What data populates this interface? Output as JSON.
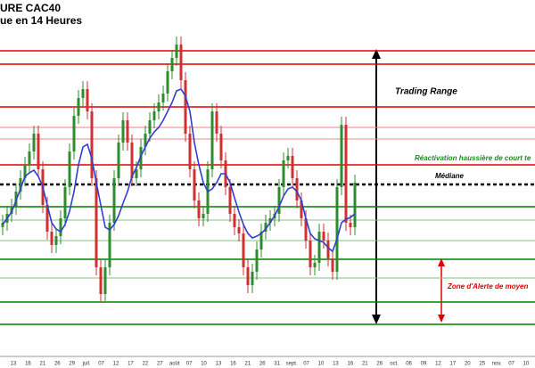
{
  "chart_data": {
    "type": "candlestick",
    "title": "URE CAC40",
    "subtitle": "ue en 14 Heures",
    "ylim": [
      0,
      413
    ],
    "up_color": "#2e8b2e",
    "down_color": "#d03030",
    "open": [
      158,
      163,
      173,
      181,
      198,
      213,
      228,
      243,
      263,
      223,
      183,
      153,
      138,
      148,
      168,
      203,
      243,
      283,
      303,
      313,
      288,
      213,
      113,
      83,
      113,
      163,
      213,
      253,
      278,
      253,
      213,
      223,
      248,
      263,
      278,
      288,
      298,
      308,
      333,
      348,
      363,
      323,
      263,
      223,
      188,
      168,
      173,
      223,
      288,
      263,
      233,
      203,
      173,
      158,
      151,
      113,
      93,
      108,
      133,
      153,
      163,
      168,
      173,
      203,
      233,
      238,
      213,
      188,
      168,
      143,
      113,
      118,
      153,
      143,
      123,
      108,
      203,
      273,
      163,
      158
    ],
    "high": [
      172,
      182,
      190,
      207,
      222,
      237,
      252,
      272,
      272,
      232,
      192,
      162,
      157,
      177,
      212,
      252,
      292,
      312,
      322,
      322,
      297,
      222,
      122,
      122,
      172,
      222,
      262,
      287,
      287,
      262,
      232,
      257,
      272,
      287,
      297,
      307,
      317,
      342,
      357,
      372,
      372,
      332,
      272,
      232,
      197,
      182,
      232,
      297,
      297,
      272,
      242,
      212,
      182,
      167,
      160,
      122,
      117,
      142,
      162,
      172,
      177,
      182,
      212,
      242,
      247,
      247,
      222,
      197,
      177,
      152,
      127,
      162,
      162,
      152,
      132,
      212,
      282,
      282,
      172,
      217
    ],
    "low": [
      149,
      154,
      164,
      172,
      189,
      204,
      219,
      234,
      214,
      174,
      144,
      129,
      129,
      139,
      159,
      194,
      234,
      274,
      294,
      279,
      204,
      104,
      74,
      74,
      104,
      154,
      204,
      244,
      244,
      204,
      204,
      214,
      239,
      254,
      269,
      279,
      289,
      299,
      324,
      339,
      314,
      254,
      214,
      179,
      159,
      159,
      164,
      214,
      254,
      224,
      194,
      164,
      149,
      142,
      104,
      84,
      84,
      99,
      124,
      144,
      154,
      159,
      164,
      194,
      224,
      204,
      179,
      159,
      134,
      104,
      104,
      109,
      134,
      114,
      99,
      99,
      194,
      154,
      149,
      149
    ],
    "close": [
      163,
      173,
      181,
      198,
      213,
      228,
      243,
      263,
      223,
      183,
      153,
      138,
      148,
      168,
      203,
      243,
      283,
      303,
      313,
      288,
      213,
      113,
      83,
      113,
      163,
      213,
      253,
      278,
      253,
      213,
      223,
      248,
      263,
      278,
      288,
      298,
      308,
      333,
      348,
      363,
      323,
      263,
      223,
      188,
      168,
      173,
      223,
      288,
      263,
      233,
      203,
      173,
      158,
      151,
      113,
      93,
      108,
      133,
      153,
      163,
      168,
      173,
      203,
      233,
      238,
      213,
      188,
      168,
      143,
      113,
      118,
      153,
      143,
      123,
      108,
      203,
      273,
      163,
      158,
      208
    ],
    "moving_average": {
      "color": "#2f3fd0",
      "values": [
        161,
        168,
        175,
        188,
        201,
        215,
        219,
        222,
        215,
        203,
        183,
        163,
        156,
        153,
        161,
        176,
        198,
        228,
        248,
        251,
        235,
        208,
        183,
        158,
        155,
        161,
        171,
        185,
        198,
        215,
        225,
        238,
        248,
        258,
        265,
        270,
        278,
        288,
        298,
        311,
        313,
        305,
        288,
        253,
        228,
        208,
        198,
        201,
        208,
        218,
        218,
        208,
        191,
        175,
        161,
        151,
        146,
        148,
        151,
        156,
        163,
        171,
        181,
        193,
        201,
        203,
        198,
        188,
        168,
        151,
        145,
        143,
        141,
        135,
        131,
        145,
        163,
        167,
        169,
        173
      ]
    },
    "levels": [
      {
        "value": 356,
        "color": "#e00000",
        "style": "solid"
      },
      {
        "value": 341,
        "color": "#e00000",
        "style": "solid"
      },
      {
        "value": 293,
        "color": "#e00000",
        "style": "solid"
      },
      {
        "value": 270,
        "color": "#f08080",
        "style": "thin"
      },
      {
        "value": 257,
        "color": "#f08080",
        "style": "thin"
      },
      {
        "value": 228,
        "color": "#e00000",
        "style": "solid"
      },
      {
        "value": 206,
        "color": "#000000",
        "style": "dashed"
      },
      {
        "value": 181,
        "color": "#008000",
        "style": "solid"
      },
      {
        "value": 166,
        "color": "#80c080",
        "style": "thin"
      },
      {
        "value": 143,
        "color": "#80c080",
        "style": "thin"
      },
      {
        "value": 122,
        "color": "#008000",
        "style": "solid"
      },
      {
        "value": 101,
        "color": "#80c080",
        "style": "thin"
      },
      {
        "value": 74,
        "color": "#008000",
        "style": "solid"
      },
      {
        "value": 49,
        "color": "#008000",
        "style": "solid"
      }
    ],
    "x_labels": [
      "13",
      "16",
      "21",
      "26",
      "29",
      "juil.",
      "07",
      "12",
      "17",
      "22",
      "27",
      "août",
      "07",
      "10",
      "13",
      "16",
      "21",
      "26",
      "31",
      "sept.",
      "07",
      "10",
      "13",
      "16",
      "21",
      "26",
      "oct.",
      "06",
      "09",
      "12",
      "17",
      "20",
      "25",
      "nov.",
      "07",
      "10"
    ],
    "annotations": [
      {
        "text": "Trading Range",
        "color": "#000000"
      },
      {
        "text": "Réactivation haussière de court te",
        "color": "#1a8a1a"
      },
      {
        "text": "Médiane",
        "color": "#000000"
      },
      {
        "text": "Zone d'Alerte de moyen",
        "color": "#e00000"
      }
    ]
  }
}
